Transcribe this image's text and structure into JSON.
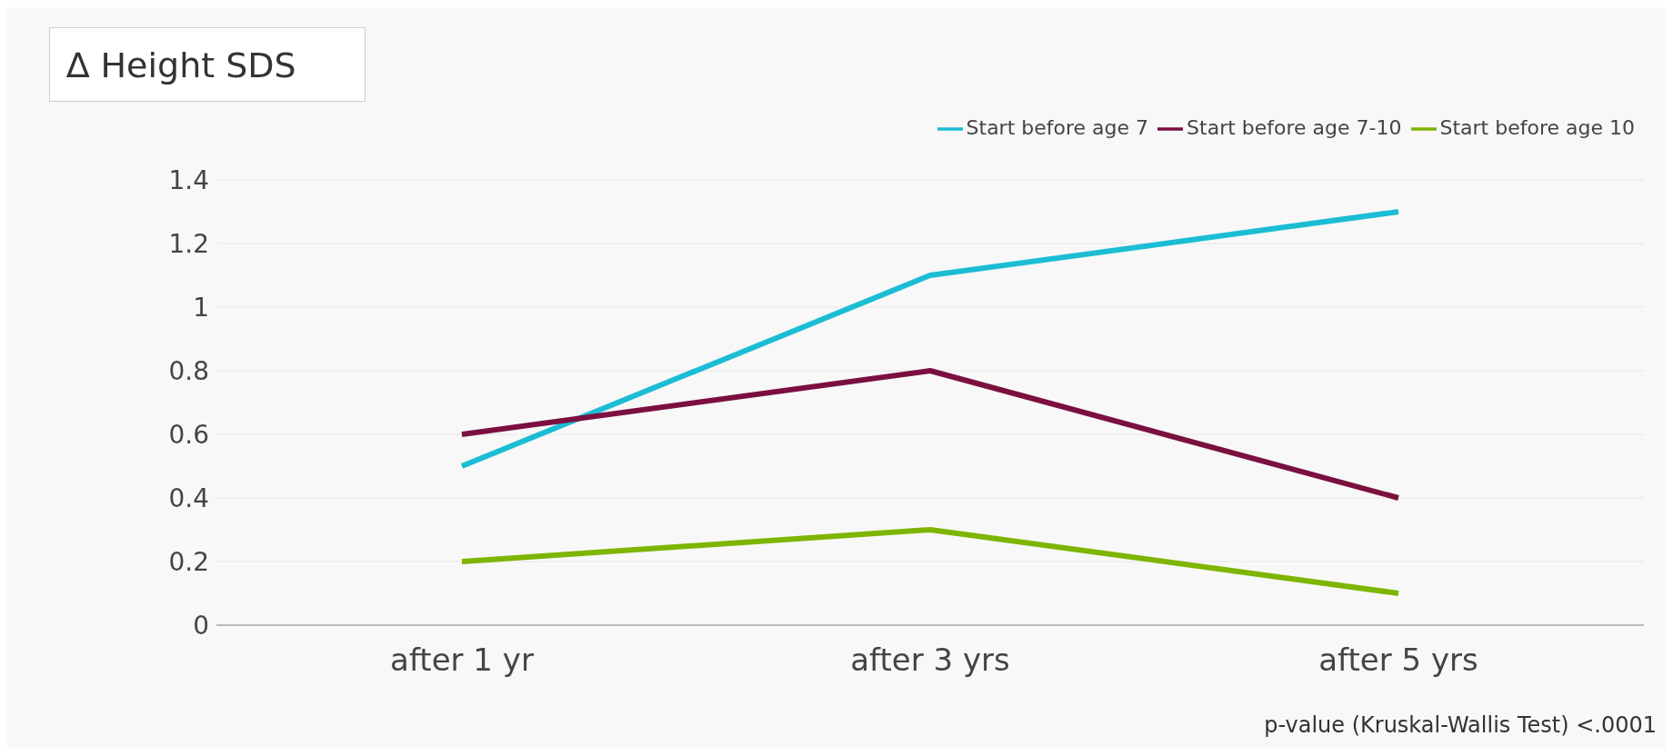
{
  "chart_data": {
    "type": "line",
    "title": "∆ Height SDS",
    "categories": [
      "after 1 yr",
      "after 3 yrs",
      "after 5 yrs"
    ],
    "series": [
      {
        "name": "Start before age 7",
        "color": "#1bbdd4",
        "values": [
          0.5,
          1.1,
          1.3
        ]
      },
      {
        "name": "Start before age 7-10",
        "color": "#7b1040",
        "values": [
          0.6,
          0.8,
          0.4
        ]
      },
      {
        "name": "Start before age 10",
        "color": "#7db500",
        "values": [
          0.2,
          0.3,
          0.1
        ]
      }
    ],
    "ylim": [
      0,
      1.4
    ],
    "yticks": [
      0,
      0.2,
      0.4,
      0.6,
      0.8,
      1,
      1.2,
      1.4
    ],
    "grid": "y",
    "legend": "top right",
    "line_style": "solid",
    "annotations": [
      "p-value (Kruskal-Wallis Test) <.0001"
    ]
  }
}
